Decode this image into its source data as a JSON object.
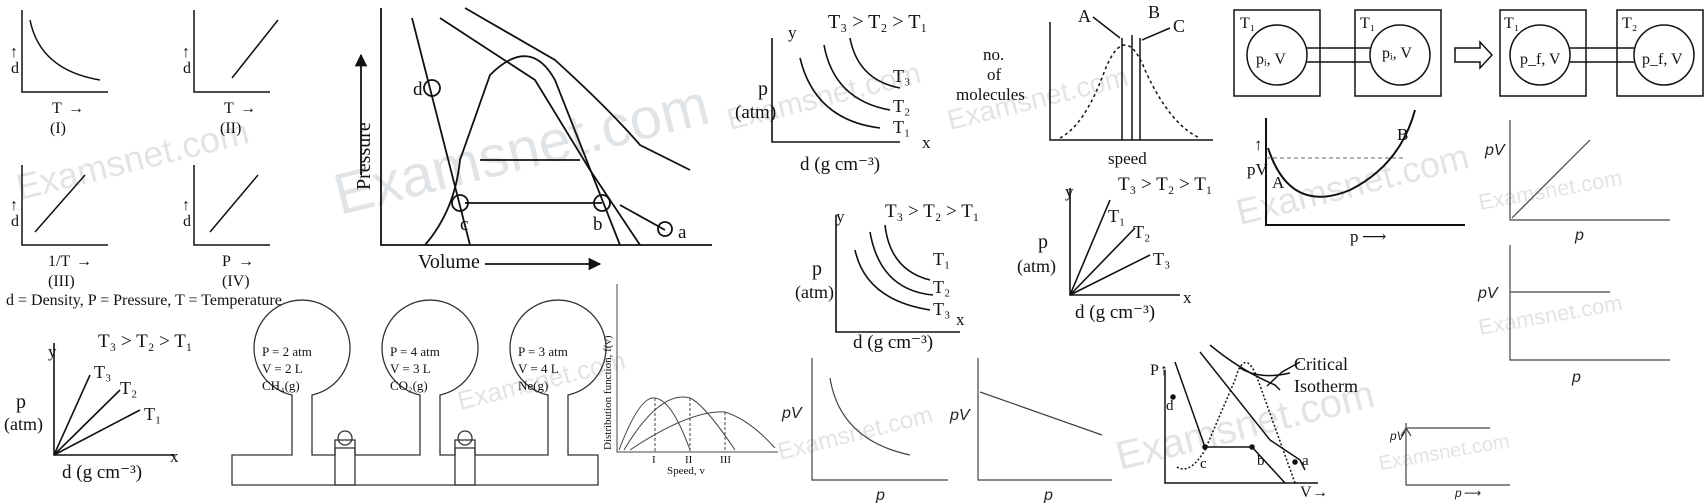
{
  "watermark": "Examsnet.com",
  "p1": {
    "ylab": "d",
    "xlab": "T",
    "labels": [
      "(I)",
      "(II)",
      "(III)",
      "(IV)"
    ],
    "xlabs": [
      "T",
      "T",
      "1/T",
      "P"
    ],
    "caption": "d = Density, P = Pressure, T = Temperature"
  },
  "pv_iso": {
    "ylab": "Pressure",
    "xlab": "Volume",
    "points": {
      "a": "a",
      "b": "b",
      "c": "c",
      "d": "d"
    }
  },
  "g_pd": {
    "title": "T₃ > T₂ > T₁",
    "y": "y",
    "x": "x",
    "p": "p",
    "atm": "(atm)",
    "xl": "d (g cm⁻³)",
    "curves": [
      "T₃",
      "T₂",
      "T₁"
    ]
  },
  "g_pd2": {
    "title": "T₃ > T₂ > T₁",
    "y": "y",
    "x": "x",
    "p": "p",
    "atm": "(atm)",
    "xl": "d (g cm⁻³)",
    "curves": [
      "T₁",
      "T₂",
      "T₃"
    ]
  },
  "g_lin1": {
    "title": "T₃ > T₂ > T₁",
    "y": "y",
    "x": "x",
    "p": "p",
    "atm": "(atm)",
    "xl": "d (g cm⁻³)",
    "lines": [
      "T₁",
      "T₂",
      "T₃"
    ]
  },
  "g_lin2": {
    "title": "T₃ > T₂ > T₁",
    "y": "y",
    "x": "x",
    "p": "p",
    "atm": "(atm)",
    "xl": "d (g cm⁻³)",
    "lines": [
      "T₃",
      "T₂",
      "T₁"
    ]
  },
  "maxwell": {
    "ylab1": "no.",
    "ylab2": "of",
    "ylab3": "molecules",
    "xlab": "speed",
    "A": "A",
    "B": "B",
    "C": "C"
  },
  "bulbs": [
    {
      "p": "P = 2 atm",
      "v": "V = 2 L",
      "g": "CH₄(g)"
    },
    {
      "p": "P = 4 atm",
      "v": "V = 3 L",
      "g": "CO₂(g)"
    },
    {
      "p": "P = 3 atm",
      "v": "V = 4 L",
      "g": "Ne(g)"
    }
  ],
  "dist": {
    "ylab": "Distribution function, f(v)",
    "xlab": "Speed, v",
    "marks": [
      "I",
      "II",
      "III"
    ]
  },
  "flask": {
    "t1": "T₁",
    "t1b": "T₁",
    "t1c": "T₁",
    "t2": "T₂",
    "pi": "pᵢ, V",
    "pf": "p_f, V"
  },
  "pvp": {
    "ylab": "pV",
    "xlab": "p",
    "A": "A",
    "B": "B"
  },
  "small": {
    "pv": "pV",
    "p": "p"
  },
  "crit": {
    "P": "P",
    "V": "V",
    "label1": "Critical",
    "label2": "Isotherm",
    "a": "a",
    "b": "b",
    "c": "c",
    "d": "d"
  }
}
